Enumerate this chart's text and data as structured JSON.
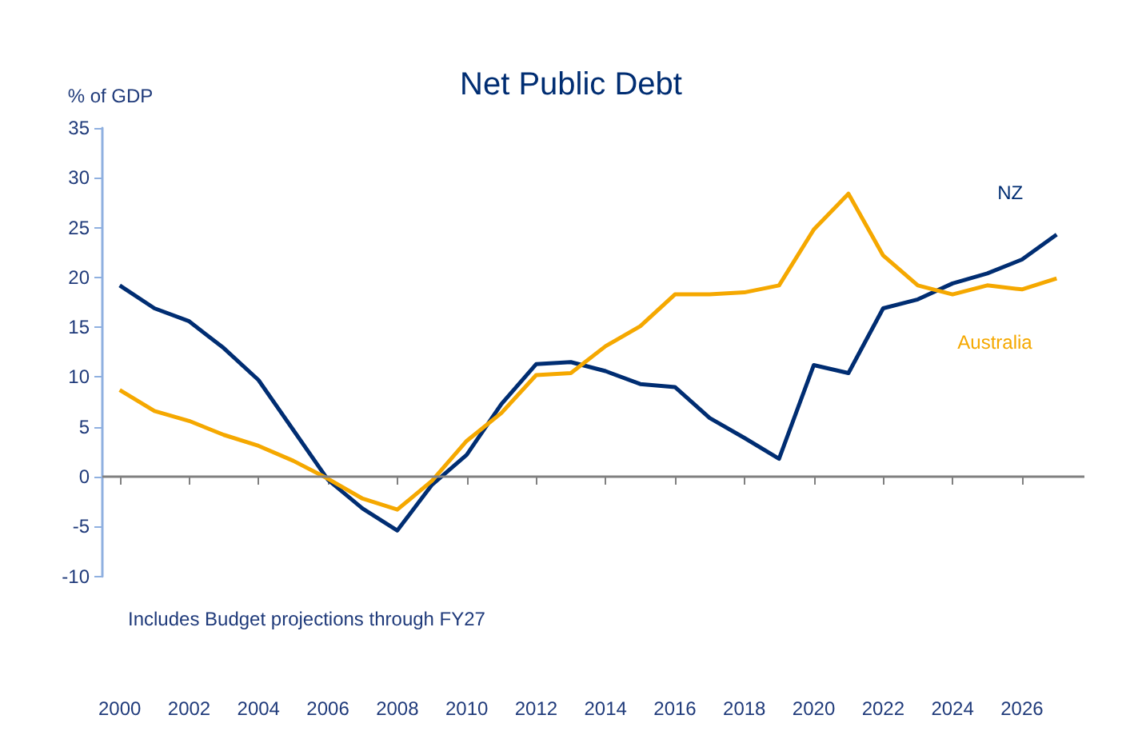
{
  "chart_data": {
    "type": "line",
    "title": "Net Public Debt",
    "ylabel": "% of GDP",
    "annotations": [
      "Includes Budget projections through FY27"
    ],
    "x": [
      2000,
      2001,
      2002,
      2003,
      2004,
      2005,
      2006,
      2007,
      2008,
      2009,
      2010,
      2011,
      2012,
      2013,
      2014,
      2015,
      2016,
      2017,
      2018,
      2019,
      2020,
      2021,
      2022,
      2023,
      2024,
      2025,
      2026,
      2027
    ],
    "series": [
      {
        "name": "NZ",
        "color": "#002d72",
        "values": [
          19.2,
          16.9,
          15.6,
          12.9,
          9.7,
          4.7,
          -0.3,
          -3.2,
          -5.4,
          -0.8,
          2.2,
          7.3,
          11.3,
          11.5,
          10.6,
          9.3,
          9.0,
          5.9,
          3.9,
          1.8,
          11.2,
          10.4,
          16.9,
          17.8,
          19.4,
          20.4,
          21.8,
          24.3
        ]
      },
      {
        "name": "Australia",
        "color": "#f5a800",
        "values": [
          8.7,
          6.6,
          5.6,
          4.2,
          3.1,
          1.6,
          -0.2,
          -2.2,
          -3.3,
          -0.4,
          3.6,
          6.4,
          10.2,
          10.4,
          13.1,
          15.1,
          18.3,
          18.3,
          18.5,
          19.2,
          24.8,
          28.4,
          22.2,
          19.2,
          18.3,
          19.2,
          18.8,
          19.9
        ]
      }
    ],
    "xlim": [
      1999.5,
      2027.8
    ],
    "xticks": [
      2000,
      2002,
      2004,
      2006,
      2008,
      2010,
      2012,
      2014,
      2016,
      2018,
      2020,
      2022,
      2024,
      2026
    ],
    "ylim": [
      -10,
      35
    ],
    "yticks": [
      -10,
      -5,
      0,
      5,
      10,
      15,
      20,
      25,
      30,
      35
    ],
    "ref_lines": [
      {
        "axis": "y",
        "value": 0,
        "color": "#808080"
      }
    ],
    "grid": false,
    "legend": false,
    "marker": "none",
    "line_style": "solid"
  }
}
